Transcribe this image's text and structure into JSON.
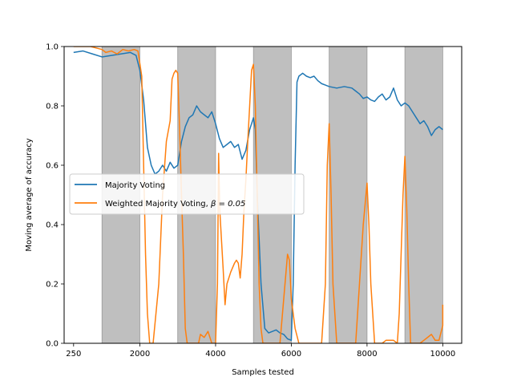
{
  "chart_data": {
    "type": "line",
    "title": "",
    "xlabel": "Samples tested",
    "ylabel": "Moving average of accuracy",
    "xlim": [
      0,
      10500
    ],
    "ylim": [
      0.0,
      1.0
    ],
    "x_ticks": [
      {
        "value": 250,
        "label": "250"
      },
      {
        "value": 2000,
        "label": "2000"
      },
      {
        "value": 4000,
        "label": "4000"
      },
      {
        "value": 6000,
        "label": "6000"
      },
      {
        "value": 8000,
        "label": "8000"
      },
      {
        "value": 10000,
        "label": "10000"
      }
    ],
    "y_ticks": [
      {
        "value": 0.0,
        "label": "0.0"
      },
      {
        "value": 0.2,
        "label": "0.2"
      },
      {
        "value": 0.4,
        "label": "0.4"
      },
      {
        "value": 0.6,
        "label": "0.6"
      },
      {
        "value": 0.8,
        "label": "0.8"
      },
      {
        "value": 1.0,
        "label": "1.0"
      }
    ],
    "shaded_regions": [
      [
        1000,
        2000
      ],
      [
        3000,
        4000
      ],
      [
        5000,
        6000
      ],
      [
        7000,
        8000
      ],
      [
        9000,
        10000
      ]
    ],
    "shaded_color": "#bfbfbf",
    "legend_position": "center-left",
    "series": [
      {
        "name": "Majority Voting",
        "color": "#1f77b4",
        "points": [
          [
            250,
            0.98
          ],
          [
            500,
            0.985
          ],
          [
            750,
            0.975
          ],
          [
            1000,
            0.965
          ],
          [
            1250,
            0.97
          ],
          [
            1500,
            0.975
          ],
          [
            1750,
            0.98
          ],
          [
            1900,
            0.97
          ],
          [
            2000,
            0.92
          ],
          [
            2100,
            0.82
          ],
          [
            2200,
            0.66
          ],
          [
            2300,
            0.6
          ],
          [
            2400,
            0.57
          ],
          [
            2500,
            0.58
          ],
          [
            2600,
            0.6
          ],
          [
            2700,
            0.58
          ],
          [
            2800,
            0.61
          ],
          [
            2900,
            0.59
          ],
          [
            3000,
            0.6
          ],
          [
            3100,
            0.68
          ],
          [
            3200,
            0.73
          ],
          [
            3300,
            0.76
          ],
          [
            3400,
            0.77
          ],
          [
            3500,
            0.8
          ],
          [
            3600,
            0.78
          ],
          [
            3700,
            0.77
          ],
          [
            3800,
            0.76
          ],
          [
            3900,
            0.78
          ],
          [
            4000,
            0.74
          ],
          [
            4100,
            0.69
          ],
          [
            4200,
            0.66
          ],
          [
            4300,
            0.67
          ],
          [
            4400,
            0.68
          ],
          [
            4500,
            0.66
          ],
          [
            4600,
            0.67
          ],
          [
            4700,
            0.62
          ],
          [
            4800,
            0.65
          ],
          [
            4900,
            0.72
          ],
          [
            5000,
            0.76
          ],
          [
            5050,
            0.72
          ],
          [
            5100,
            0.5
          ],
          [
            5200,
            0.2
          ],
          [
            5300,
            0.05
          ],
          [
            5400,
            0.035
          ],
          [
            5500,
            0.04
          ],
          [
            5600,
            0.045
          ],
          [
            5700,
            0.035
          ],
          [
            5800,
            0.03
          ],
          [
            5900,
            0.015
          ],
          [
            6000,
            0.01
          ],
          [
            6050,
            0.2
          ],
          [
            6100,
            0.6
          ],
          [
            6150,
            0.88
          ],
          [
            6200,
            0.9
          ],
          [
            6300,
            0.91
          ],
          [
            6400,
            0.9
          ],
          [
            6500,
            0.895
          ],
          [
            6600,
            0.9
          ],
          [
            6700,
            0.885
          ],
          [
            6800,
            0.875
          ],
          [
            6900,
            0.87
          ],
          [
            7000,
            0.865
          ],
          [
            7200,
            0.86
          ],
          [
            7400,
            0.865
          ],
          [
            7600,
            0.86
          ],
          [
            7700,
            0.85
          ],
          [
            7800,
            0.84
          ],
          [
            7900,
            0.825
          ],
          [
            8000,
            0.83
          ],
          [
            8100,
            0.82
          ],
          [
            8200,
            0.815
          ],
          [
            8300,
            0.83
          ],
          [
            8400,
            0.84
          ],
          [
            8500,
            0.82
          ],
          [
            8600,
            0.83
          ],
          [
            8700,
            0.86
          ],
          [
            8800,
            0.82
          ],
          [
            8900,
            0.8
          ],
          [
            9000,
            0.81
          ],
          [
            9100,
            0.8
          ],
          [
            9200,
            0.78
          ],
          [
            9300,
            0.76
          ],
          [
            9400,
            0.74
          ],
          [
            9500,
            0.75
          ],
          [
            9600,
            0.73
          ],
          [
            9700,
            0.7
          ],
          [
            9800,
            0.72
          ],
          [
            9900,
            0.73
          ],
          [
            10000,
            0.72
          ]
        ]
      },
      {
        "name": "Weighted Majority Voting, β = 0.05",
        "legend_prefix": "Weighted Majority Voting, ",
        "legend_math": "β = 0.05",
        "color": "#ff7f0e",
        "points": [
          [
            250,
            1.0
          ],
          [
            700,
            1.0
          ],
          [
            1000,
            0.99
          ],
          [
            1100,
            0.98
          ],
          [
            1250,
            0.985
          ],
          [
            1400,
            0.975
          ],
          [
            1550,
            0.99
          ],
          [
            1700,
            0.985
          ],
          [
            1850,
            0.99
          ],
          [
            1950,
            0.985
          ],
          [
            2050,
            0.9
          ],
          [
            2100,
            0.6
          ],
          [
            2150,
            0.3
          ],
          [
            2200,
            0.1
          ],
          [
            2260,
            0.0
          ],
          [
            2350,
            0.0
          ],
          [
            2500,
            0.2
          ],
          [
            2600,
            0.5
          ],
          [
            2700,
            0.68
          ],
          [
            2800,
            0.75
          ],
          [
            2850,
            0.89
          ],
          [
            2900,
            0.91
          ],
          [
            2950,
            0.92
          ],
          [
            3000,
            0.91
          ],
          [
            3050,
            0.72
          ],
          [
            3100,
            0.5
          ],
          [
            3150,
            0.3
          ],
          [
            3200,
            0.05
          ],
          [
            3250,
            0.0
          ],
          [
            3550,
            0.0
          ],
          [
            3600,
            0.03
          ],
          [
            3700,
            0.02
          ],
          [
            3800,
            0.04
          ],
          [
            3900,
            0.0
          ],
          [
            4000,
            0.0
          ],
          [
            4050,
            0.2
          ],
          [
            4080,
            0.64
          ],
          [
            4110,
            0.45
          ],
          [
            4200,
            0.25
          ],
          [
            4250,
            0.13
          ],
          [
            4300,
            0.2
          ],
          [
            4400,
            0.24
          ],
          [
            4500,
            0.27
          ],
          [
            4550,
            0.28
          ],
          [
            4600,
            0.27
          ],
          [
            4650,
            0.22
          ],
          [
            4700,
            0.3
          ],
          [
            4750,
            0.45
          ],
          [
            4800,
            0.55
          ],
          [
            4850,
            0.68
          ],
          [
            4900,
            0.8
          ],
          [
            4950,
            0.92
          ],
          [
            5000,
            0.94
          ],
          [
            5050,
            0.8
          ],
          [
            5100,
            0.5
          ],
          [
            5150,
            0.2
          ],
          [
            5200,
            0.05
          ],
          [
            5250,
            0.0
          ],
          [
            5700,
            0.0
          ],
          [
            5800,
            0.15
          ],
          [
            5900,
            0.3
          ],
          [
            5950,
            0.28
          ],
          [
            6000,
            0.15
          ],
          [
            6100,
            0.05
          ],
          [
            6200,
            0.0
          ],
          [
            6800,
            0.0
          ],
          [
            6900,
            0.2
          ],
          [
            6950,
            0.6
          ],
          [
            7000,
            0.74
          ],
          [
            7050,
            0.5
          ],
          [
            7100,
            0.2
          ],
          [
            7200,
            0.0
          ],
          [
            7700,
            0.0
          ],
          [
            7800,
            0.2
          ],
          [
            7900,
            0.4
          ],
          [
            8000,
            0.54
          ],
          [
            8050,
            0.4
          ],
          [
            8100,
            0.2
          ],
          [
            8200,
            0.0
          ],
          [
            8400,
            0.0
          ],
          [
            8500,
            0.01
          ],
          [
            8700,
            0.01
          ],
          [
            8800,
            0.0
          ],
          [
            8850,
            0.1
          ],
          [
            8900,
            0.3
          ],
          [
            8950,
            0.5
          ],
          [
            9000,
            0.63
          ],
          [
            9050,
            0.45
          ],
          [
            9100,
            0.2
          ],
          [
            9150,
            0.0
          ],
          [
            9400,
            0.0
          ],
          [
            9500,
            0.01
          ],
          [
            9600,
            0.02
          ],
          [
            9700,
            0.03
          ],
          [
            9800,
            0.01
          ],
          [
            9900,
            0.01
          ],
          [
            10000,
            0.06
          ],
          [
            10000,
            0.13
          ]
        ]
      }
    ]
  }
}
